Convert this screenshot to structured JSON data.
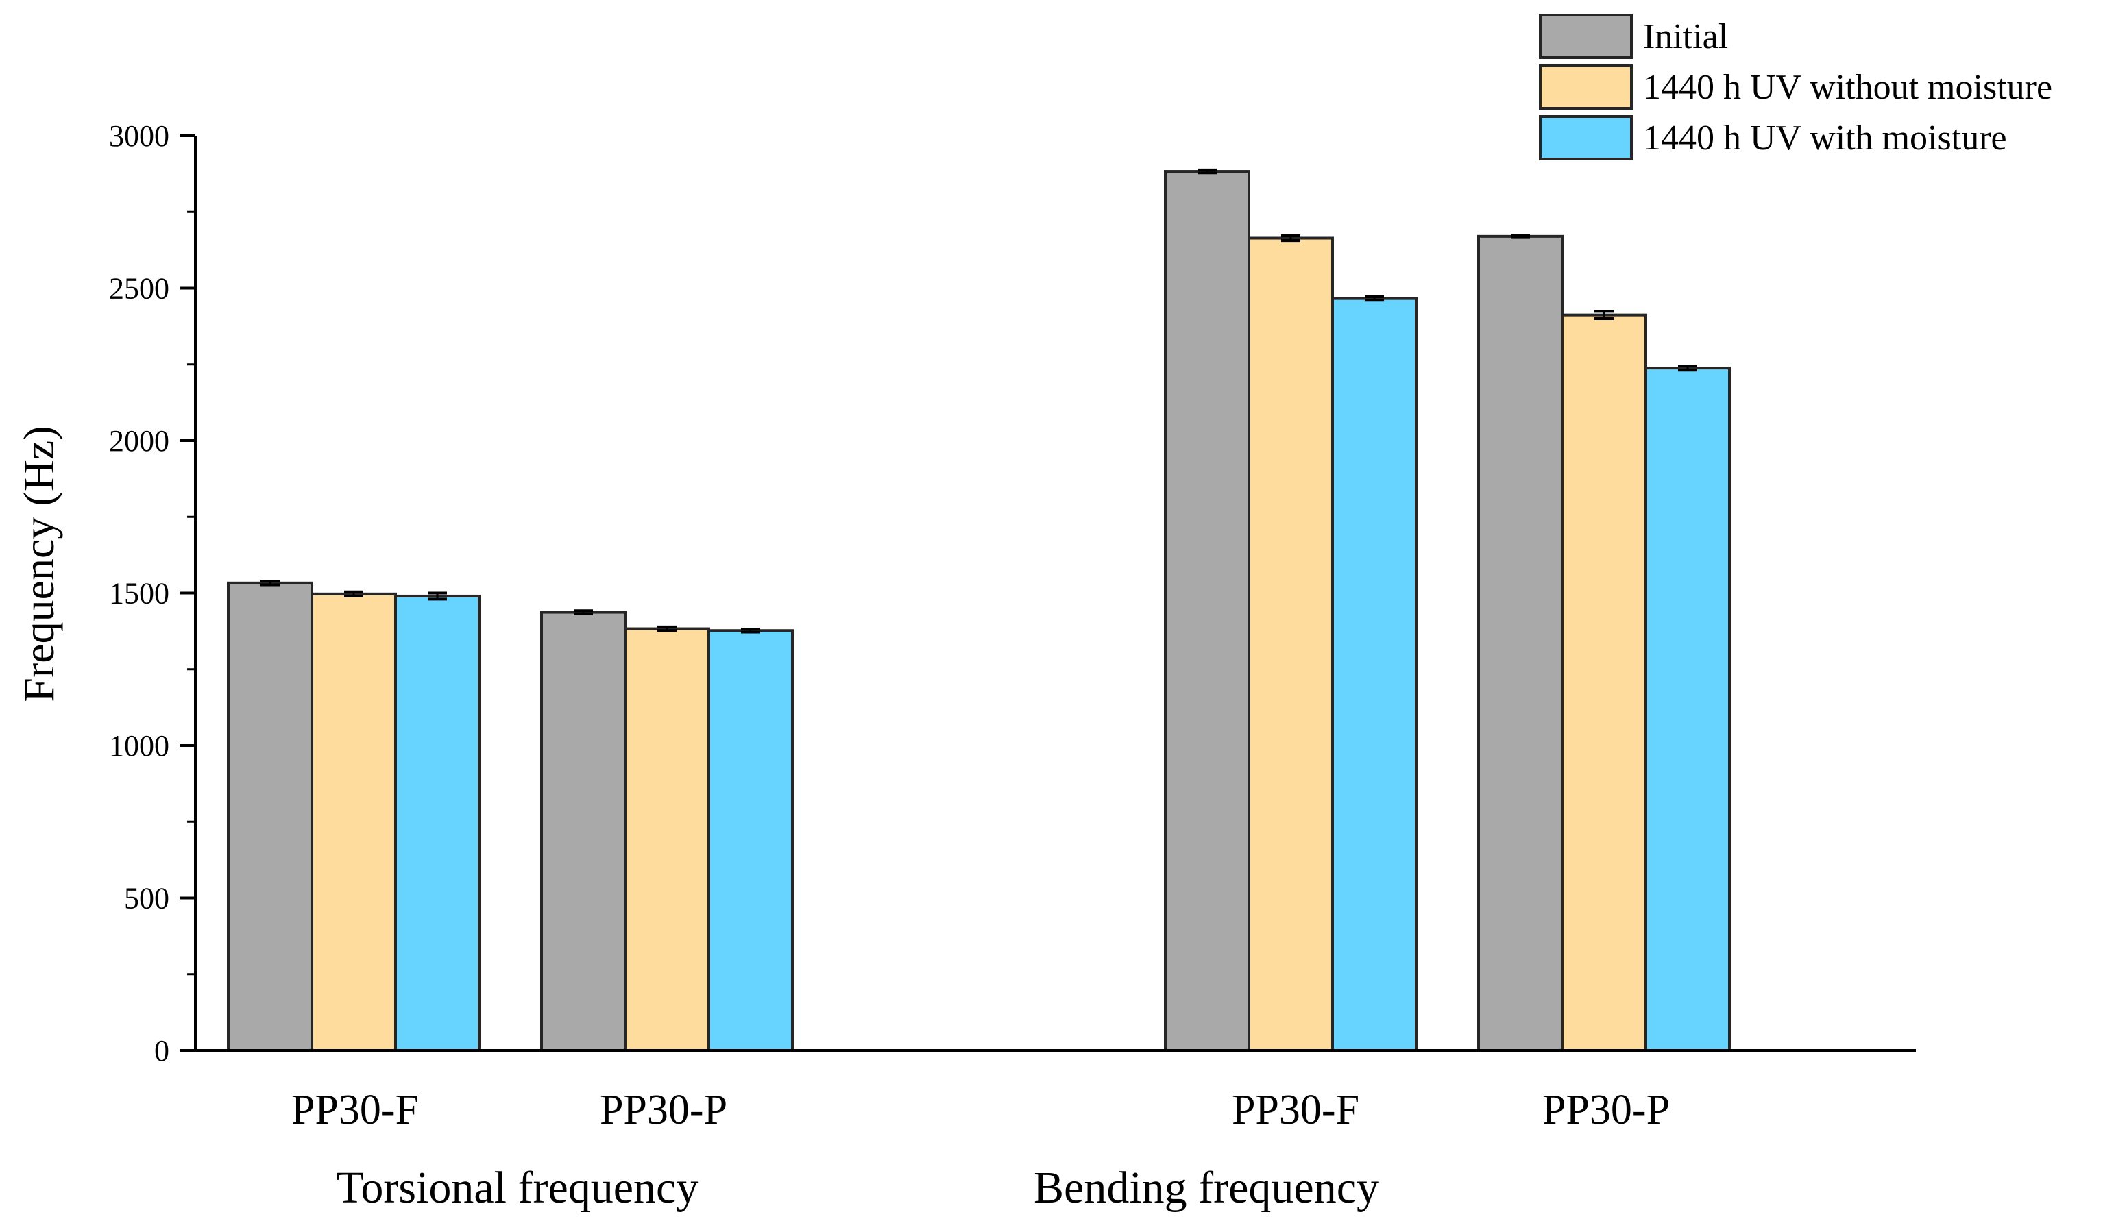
{
  "chart_data": {
    "type": "bar",
    "title": "",
    "xlabel": "",
    "ylabel": "Frequency (Hz)",
    "ylim": [
      0,
      3000
    ],
    "yticks": [
      "0",
      "500",
      "1000",
      "1500",
      "2000",
      "2500",
      "3000"
    ],
    "grid": false,
    "legend_position": "top-right",
    "groups": [
      {
        "label": "Torsional frequency",
        "categories": [
          "PP30-F",
          "PP30-P"
        ],
        "series": [
          {
            "name": "Initial",
            "values": [
              1533,
              1437
            ],
            "errors": [
              6,
              5
            ]
          },
          {
            "name": "1440 h UV without moisture",
            "values": [
              1497,
              1383
            ],
            "errors": [
              7,
              6
            ]
          },
          {
            "name": "1440 h UV with moisture",
            "values": [
              1490,
              1377
            ],
            "errors": [
              10,
              5
            ]
          }
        ]
      },
      {
        "label": "Bending frequency",
        "categories": [
          "PP30-F",
          "PP30-P"
        ],
        "series": [
          {
            "name": "Initial",
            "values": [
              2883,
              2670
            ],
            "errors": [
              5,
              4
            ]
          },
          {
            "name": "1440 h UV without moisture",
            "values": [
              2664,
              2412
            ],
            "errors": [
              8,
              12
            ]
          },
          {
            "name": "1440 h UV with moisture",
            "values": [
              2466,
              2238
            ],
            "errors": [
              6,
              7
            ]
          }
        ]
      }
    ],
    "legend": [
      {
        "name": "Initial",
        "color": "#a9a9a9"
      },
      {
        "name": "1440 h UV without moisture",
        "color": "#fddc9e"
      },
      {
        "name": "1440 h UV with moisture",
        "color": "#66d4fe"
      }
    ],
    "bar_stroke_color": "#262626"
  }
}
